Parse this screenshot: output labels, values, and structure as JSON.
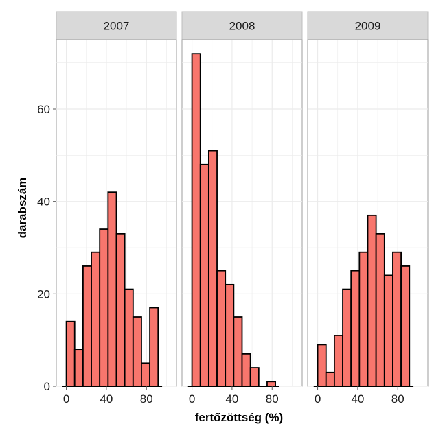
{
  "chart_data": {
    "type": "bar",
    "xlabel": "fertőzöttség (%)",
    "ylabel": "darabszám",
    "ylim": [
      0,
      75
    ],
    "y_ticks": [
      0,
      20,
      40,
      60
    ],
    "xlim": [
      -10,
      110
    ],
    "x_ticks": [
      0,
      40,
      80
    ],
    "bin_width": 8.33,
    "grid": true,
    "colors": {
      "fill": "#f8766d",
      "stroke": "#000000",
      "strip": "#d9d9d9",
      "grid": "#ebebeb"
    },
    "panels": [
      {
        "label": "2007",
        "bins": [
          {
            "x0": 0,
            "x1": 8.33,
            "count": 14
          },
          {
            "x0": 8.33,
            "x1": 16.67,
            "count": 8
          },
          {
            "x0": 16.67,
            "x1": 25,
            "count": 26
          },
          {
            "x0": 25,
            "x1": 33.33,
            "count": 29
          },
          {
            "x0": 33.33,
            "x1": 41.67,
            "count": 34
          },
          {
            "x0": 41.67,
            "x1": 50,
            "count": 42
          },
          {
            "x0": 50,
            "x1": 58.33,
            "count": 33
          },
          {
            "x0": 58.33,
            "x1": 66.67,
            "count": 21
          },
          {
            "x0": 66.67,
            "x1": 75,
            "count": 15
          },
          {
            "x0": 75,
            "x1": 83.33,
            "count": 5
          },
          {
            "x0": 83.33,
            "x1": 91.67,
            "count": 17
          }
        ]
      },
      {
        "label": "2008",
        "bins": [
          {
            "x0": 0,
            "x1": 8.33,
            "count": 72
          },
          {
            "x0": 8.33,
            "x1": 16.67,
            "count": 48
          },
          {
            "x0": 16.67,
            "x1": 25,
            "count": 51
          },
          {
            "x0": 25,
            "x1": 33.33,
            "count": 25
          },
          {
            "x0": 33.33,
            "x1": 41.67,
            "count": 22
          },
          {
            "x0": 41.67,
            "x1": 50,
            "count": 15
          },
          {
            "x0": 50,
            "x1": 58.33,
            "count": 7
          },
          {
            "x0": 58.33,
            "x1": 66.67,
            "count": 4
          },
          {
            "x0": 66.67,
            "x1": 75,
            "count": 0
          },
          {
            "x0": 75,
            "x1": 83.33,
            "count": 1
          }
        ]
      },
      {
        "label": "2009",
        "bins": [
          {
            "x0": 0,
            "x1": 8.33,
            "count": 9
          },
          {
            "x0": 8.33,
            "x1": 16.67,
            "count": 3
          },
          {
            "x0": 16.67,
            "x1": 25,
            "count": 11
          },
          {
            "x0": 25,
            "x1": 33.33,
            "count": 21
          },
          {
            "x0": 33.33,
            "x1": 41.67,
            "count": 25
          },
          {
            "x0": 41.67,
            "x1": 50,
            "count": 29
          },
          {
            "x0": 50,
            "x1": 58.33,
            "count": 37
          },
          {
            "x0": 58.33,
            "x1": 66.67,
            "count": 33
          },
          {
            "x0": 66.67,
            "x1": 75,
            "count": 24
          },
          {
            "x0": 75,
            "x1": 83.33,
            "count": 29
          },
          {
            "x0": 83.33,
            "x1": 91.67,
            "count": 26
          }
        ]
      }
    ]
  }
}
